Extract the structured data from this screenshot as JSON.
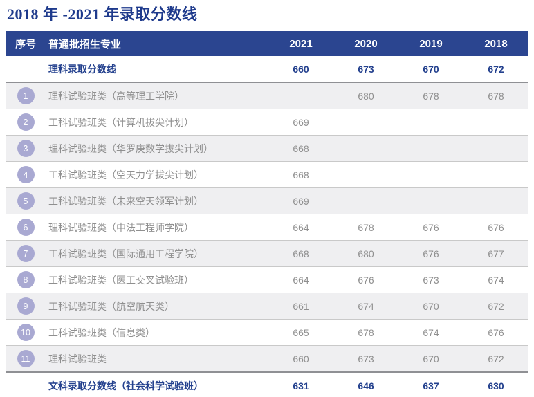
{
  "title": "2018 年 -2021 年录取分数线",
  "colors": {
    "header_bg": "#2b4590",
    "accent_text_blue": "#24418e",
    "title_blue": "#1e3a8c",
    "body_text_gray": "#8f8f8f",
    "shaded_row_bg": "#efeff1",
    "badge_bg": "#a9a9d2",
    "thick_border": "#8f9094",
    "thin_border": "#c9c9c9"
  },
  "table": {
    "headers": [
      "序号",
      "普通批招生专业",
      "2021",
      "2020",
      "2019",
      "2018"
    ],
    "rows": [
      {
        "num": "",
        "name": "理科录取分数线",
        "bold": true,
        "scores": [
          "660",
          "673",
          "670",
          "672"
        ]
      },
      {
        "num": "1",
        "name": "理科试验班类（高等理工学院）",
        "bold": false,
        "scores": [
          "",
          "680",
          "678",
          "678"
        ]
      },
      {
        "num": "2",
        "name": "工科试验班类（计算机拔尖计划）",
        "bold": false,
        "scores": [
          "669",
          "",
          "",
          ""
        ]
      },
      {
        "num": "3",
        "name": "理科试验班类（华罗庚数学拔尖计划）",
        "bold": false,
        "scores": [
          "668",
          "",
          "",
          ""
        ]
      },
      {
        "num": "4",
        "name": "工科试验班类（空天力学拔尖计划）",
        "bold": false,
        "scores": [
          "668",
          "",
          "",
          ""
        ]
      },
      {
        "num": "5",
        "name": "工科试验班类（未来空天领军计划）",
        "bold": false,
        "scores": [
          "669",
          "",
          "",
          ""
        ]
      },
      {
        "num": "6",
        "name": "理科试验班类（中法工程师学院）",
        "bold": false,
        "scores": [
          "664",
          "678",
          "676",
          "676"
        ]
      },
      {
        "num": "7",
        "name": "工科试验班类（国际通用工程学院）",
        "bold": false,
        "scores": [
          "668",
          "680",
          "676",
          "677"
        ]
      },
      {
        "num": "8",
        "name": "工科试验班类（医工交叉试验班）",
        "bold": false,
        "scores": [
          "664",
          "676",
          "673",
          "674"
        ]
      },
      {
        "num": "9",
        "name": "工科试验班类（航空航天类）",
        "bold": false,
        "scores": [
          "661",
          "674",
          "670",
          "672"
        ]
      },
      {
        "num": "10",
        "name": "工科试验班类（信息类）",
        "bold": false,
        "scores": [
          "665",
          "678",
          "674",
          "676"
        ]
      },
      {
        "num": "11",
        "name": "理科试验班类",
        "bold": false,
        "scores": [
          "660",
          "673",
          "670",
          "672"
        ]
      },
      {
        "num": "",
        "name": "文科录取分数线（社会科学试验班）",
        "bold": true,
        "scores": [
          "631",
          "646",
          "637",
          "630"
        ]
      }
    ]
  }
}
